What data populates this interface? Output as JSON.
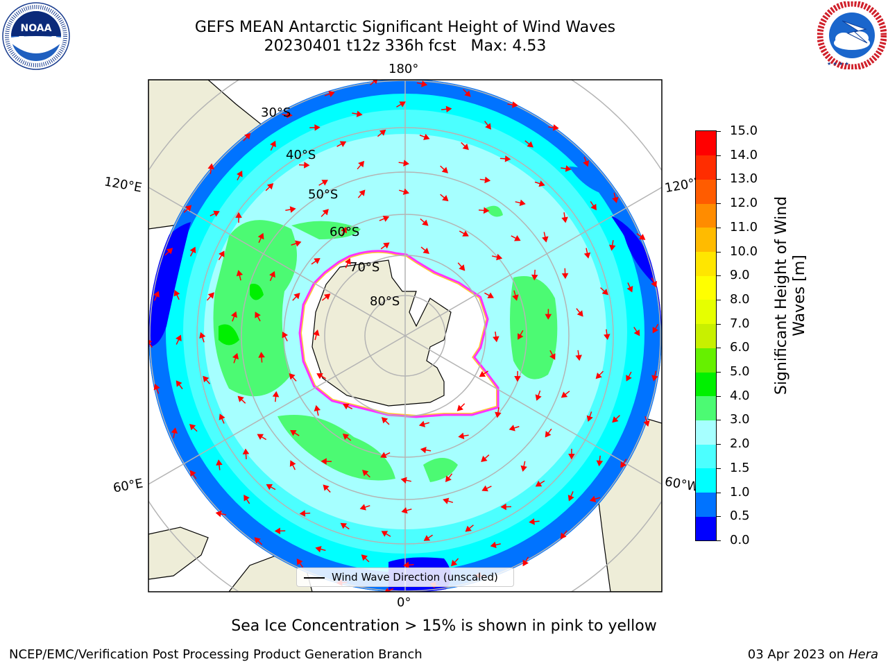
{
  "title": {
    "line1": "GEFS MEAN Antarctic Significant Height of Wind Waves",
    "line2": "20230401 t12z 336h fcst   Max: 4.53"
  },
  "logos": {
    "left": {
      "name": "noaa-logo",
      "text": "NOAA",
      "ring_text": "NATIONAL OCEANIC AND ATMOSPHERIC ADMINISTRATION · U.S. DEPARTMENT OF COMMERCE"
    },
    "right": {
      "name": "nws-logo",
      "ring_text": "NATIONAL WEATHER SERVICE"
    }
  },
  "map": {
    "projection": "south-polar-stereographic",
    "longitude_labels": {
      "top": "180°",
      "bottom": "0°",
      "upper_left": "120°E",
      "lower_left": "60°E",
      "upper_right": "120°W",
      "lower_right": "60°W"
    },
    "latitude_labels": [
      "30°S",
      "40°S",
      "50°S",
      "60°S",
      "70°S",
      "80°S"
    ],
    "colors": {
      "land": "#eeedd8",
      "ice": "#ffffff",
      "ice_edge": [
        "#ff33ff",
        "#ff99ff",
        "#ffcc33"
      ],
      "graticule": "#b4b4b4",
      "arrow": "#ff0000"
    }
  },
  "colorbar": {
    "label": "Significant Height of Wind Waves [m]",
    "ticks": [
      "0.0",
      "0.5",
      "1.0",
      "1.5",
      "2.0",
      "3.0",
      "4.0",
      "5.0",
      "6.0",
      "7.0",
      "8.0",
      "9.0",
      "10.0",
      "11.0",
      "12.0",
      "13.0",
      "14.0",
      "15.0"
    ],
    "colors": [
      "#0000ff",
      "#0073ff",
      "#00ffff",
      "#4cffff",
      "#a6ffff",
      "#4cfa73",
      "#00f000",
      "#66f000",
      "#c8f000",
      "#e6ff00",
      "#ffff00",
      "#ffe600",
      "#ffbb00",
      "#ff8c00",
      "#ff5c00",
      "#ff2d00",
      "#ff0000"
    ]
  },
  "legend": {
    "label": "Wind Wave Direction (unscaled)"
  },
  "note": "Sea Ice Concentration > 15% is shown in pink to yellow",
  "footer": {
    "left": "NCEP/EMC/Verification Post Processing Product Generation Branch",
    "right_date": "03 Apr 2023 on ",
    "right_host": "Hera"
  }
}
